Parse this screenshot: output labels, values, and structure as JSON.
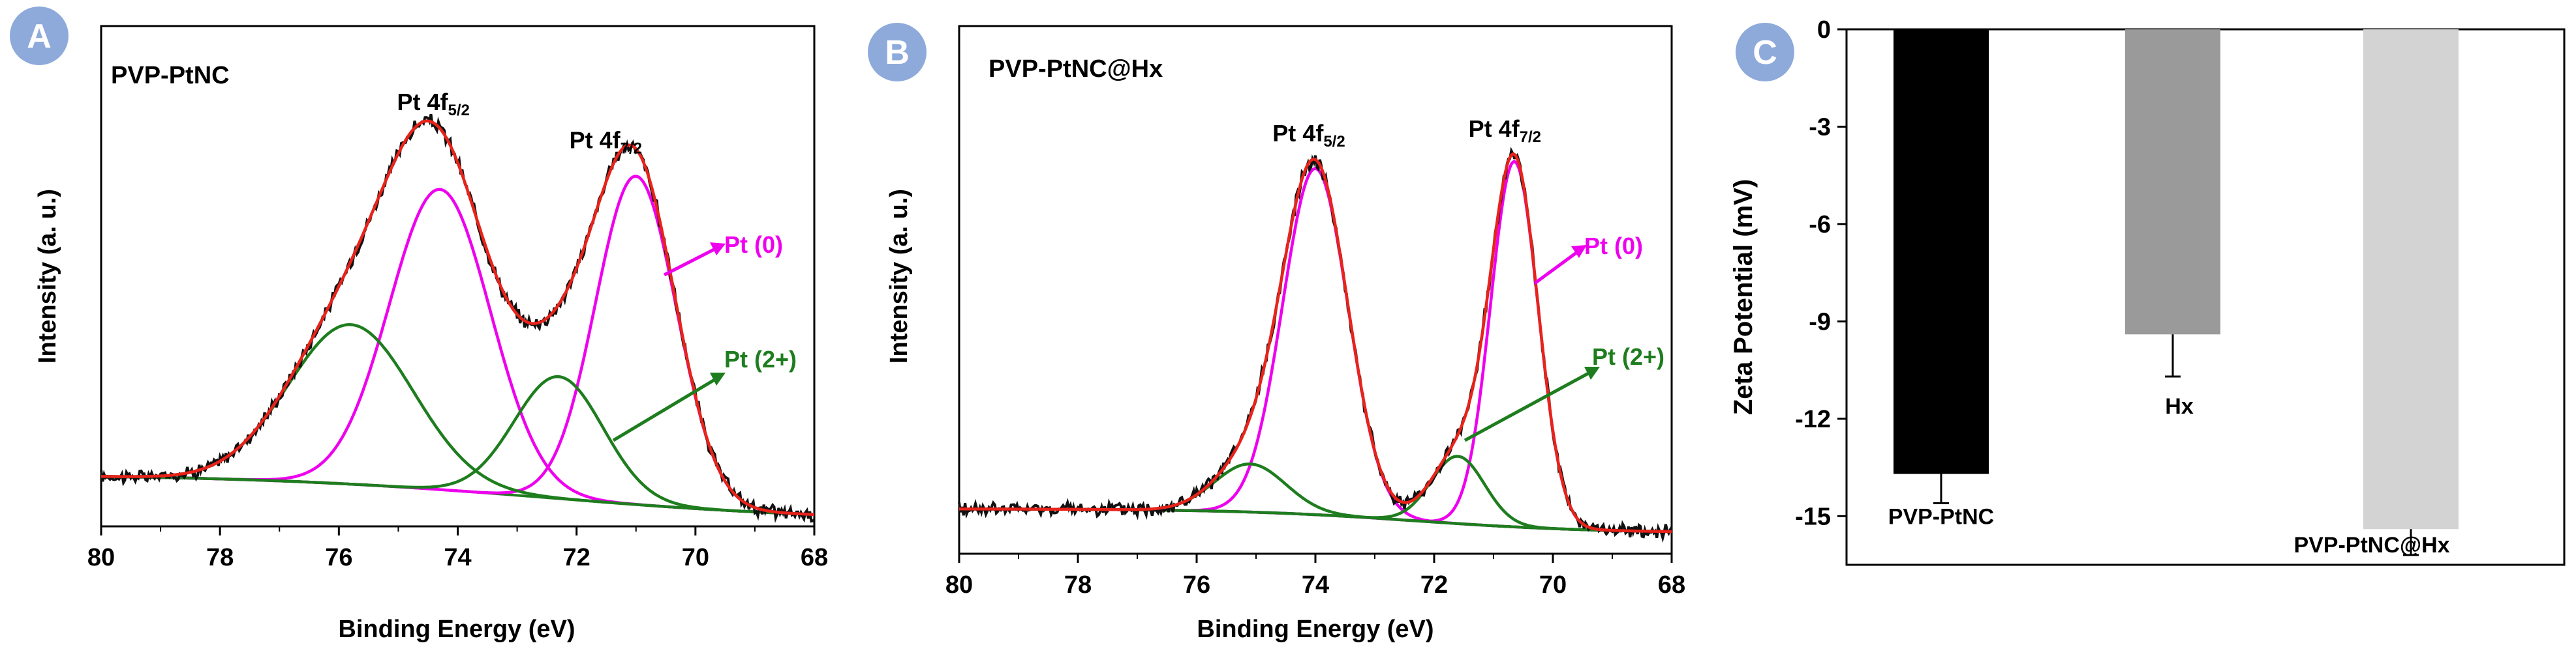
{
  "chart_data": [
    {
      "type": "line",
      "panel_label": "A",
      "title": "PVP-PtNC",
      "xlabel": "Binding Energy (eV)",
      "ylabel": "Intensity (a. u.)",
      "xlim": [
        80,
        68
      ],
      "ylim": [
        0,
        1.0
      ],
      "xticks": [
        80,
        78,
        76,
        74,
        72,
        70,
        68
      ],
      "yticks_shown": false,
      "baseline": {
        "left": 0.1,
        "right": 0.0,
        "center": 72.5,
        "width": 2.5
      },
      "components": [
        {
          "name": "Pt 4f5/2 Pt(0)",
          "family": "Pt (0)",
          "center": 74.3,
          "height": 0.64,
          "sigma": 0.85
        },
        {
          "name": "Pt 4f7/2 Pt(0)",
          "family": "Pt (0)",
          "center": 71.0,
          "height": 0.7,
          "sigma": 0.68
        },
        {
          "name": "Pt 4f5/2 Pt(2+)",
          "family": "Pt (2+)",
          "center": 75.8,
          "height": 0.34,
          "sigma": 1.05
        },
        {
          "name": "Pt 4f7/2 Pt(2+)",
          "family": "Pt (2+)",
          "center": 72.3,
          "height": 0.26,
          "sigma": 0.75
        }
      ],
      "peak_labels": [
        {
          "main": "Pt 4f",
          "sub": "5/2",
          "x": 74.3
        },
        {
          "main": "Pt 4f",
          "sub": "7/2",
          "x": 71.4
        }
      ],
      "annotations": [
        {
          "text": "Pt (0)",
          "color": "#ee00ee"
        },
        {
          "text": "Pt (2+)",
          "color": "#1e7d1e"
        }
      ]
    },
    {
      "type": "line",
      "panel_label": "B",
      "title": "PVP-PtNC@Hx",
      "xlabel": "Binding Energy (eV)",
      "ylabel": "Intensity (a. u.)",
      "xlim": [
        80,
        68
      ],
      "ylim": [
        0,
        1.0
      ],
      "xticks": [
        80,
        78,
        76,
        74,
        72,
        70,
        68
      ],
      "yticks_shown": false,
      "baseline": {
        "left": 0.05,
        "right": 0.0,
        "center": 72.3,
        "width": 1.5
      },
      "components": [
        {
          "name": "Pt 4f5/2 Pt(0)",
          "family": "Pt (0)",
          "center": 74.0,
          "height": 0.72,
          "sigma": 0.55
        },
        {
          "name": "Pt 4f7/2 Pt(0)",
          "family": "Pt (0)",
          "center": 70.65,
          "height": 0.76,
          "sigma": 0.4
        },
        {
          "name": "Pt 4f5/2 Pt(2+)",
          "family": "Pt (2+)",
          "center": 75.1,
          "height": 0.1,
          "sigma": 0.6
        },
        {
          "name": "Pt 4f7/2 Pt(2+)",
          "family": "Pt (2+)",
          "center": 71.6,
          "height": 0.14,
          "sigma": 0.45
        }
      ],
      "peak_labels": [
        {
          "main": "Pt 4f",
          "sub": "5/2",
          "x": 74.0
        },
        {
          "main": "Pt 4f",
          "sub": "7/2",
          "x": 70.7
        }
      ],
      "annotations": [
        {
          "text": "Pt (0)",
          "color": "#ee00ee"
        },
        {
          "text": "Pt (2+)",
          "color": "#1e7d1e"
        }
      ]
    },
    {
      "type": "bar",
      "panel_label": "C",
      "title": "",
      "xlabel": "",
      "ylabel": "Zeta Potential (mV)",
      "ylim": [
        -16.5,
        0
      ],
      "yticks": [
        0,
        -3,
        -6,
        -9,
        -12,
        -15
      ],
      "categories": [
        "PVP-PtNC",
        "Hx",
        "PVP-PtNC@Hx"
      ],
      "values": [
        -13.7,
        -9.4,
        -15.4
      ],
      "errors": [
        0.9,
        1.3,
        0.8
      ],
      "colors": [
        "#000000",
        "#9a9a9a",
        "#d3d3d3"
      ]
    }
  ],
  "colors": {
    "raw": "#111111",
    "envelope": "#e8231a",
    "pt0": "#ee00ee",
    "pt2": "#1e7d1e",
    "badge": "#8eaadb"
  }
}
